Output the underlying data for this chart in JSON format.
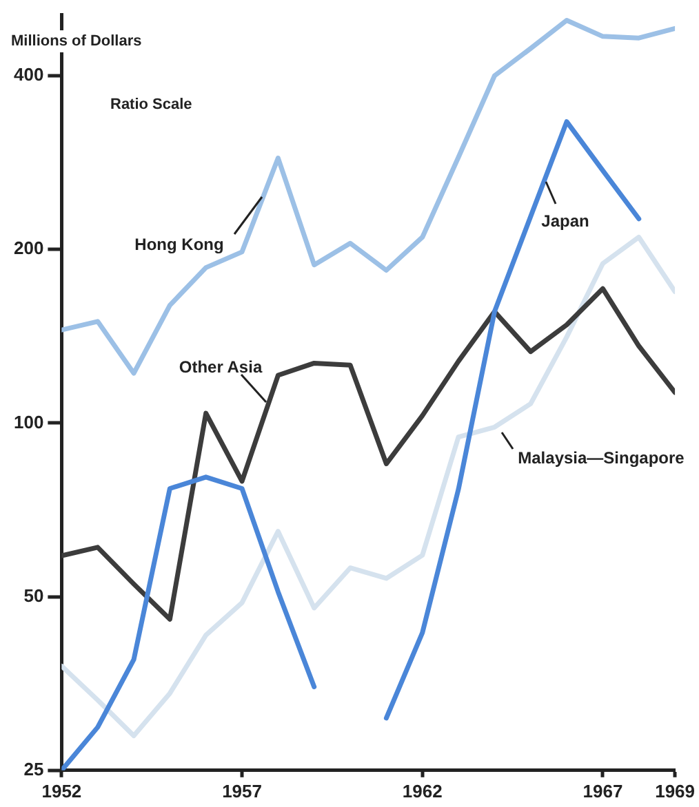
{
  "chart_data": {
    "type": "line",
    "ylabel": "Millions of Dollars",
    "annotations": [
      "Ratio Scale"
    ],
    "x": [
      1952,
      1953,
      1954,
      1955,
      1956,
      1957,
      1958,
      1959,
      1960,
      1961,
      1962,
      1963,
      1964,
      1965,
      1966,
      1967,
      1968,
      1969
    ],
    "series": [
      {
        "name": "Hong Kong",
        "color": "#9cc0e6",
        "values": [
          145,
          150,
          122,
          160,
          186,
          198,
          288,
          188,
          205,
          184,
          210,
          289,
          400,
          446,
          499,
          468,
          465,
          483
        ]
      },
      {
        "name": "Japan",
        "color": "#4a86d8",
        "values": [
          25,
          29.7,
          38.9,
          77,
          80.6,
          77,
          51,
          34.9,
          null,
          30.8,
          43.3,
          76.8,
          156,
          228,
          333,
          274,
          226,
          null
        ]
      },
      {
        "name": "Other Asia",
        "color": "#3c3c3c",
        "values": [
          58.9,
          60.9,
          52.6,
          45.7,
          104,
          79.3,
          121,
          127,
          126,
          85,
          103,
          128,
          156,
          133,
          148,
          171,
          136,
          113
        ]
      },
      {
        "name": "Malaysia—Singapore",
        "color": "#d5e2ee",
        "values": [
          37.9,
          33.1,
          28.7,
          34,
          42.9,
          48.8,
          64.9,
          47.8,
          56.1,
          53.8,
          59,
          94.6,
          98.4,
          108,
          141,
          189,
          210,
          169
        ]
      }
    ],
    "log": "y",
    "ylim": [
      25,
      510
    ],
    "yticks": [
      25,
      50,
      100,
      200,
      400
    ],
    "xlim": [
      1952,
      1969
    ],
    "xticks": [
      1952,
      1957,
      1962,
      1967,
      1969
    ],
    "grid": false,
    "legend": false,
    "line_style": "solid",
    "marker": "none"
  }
}
